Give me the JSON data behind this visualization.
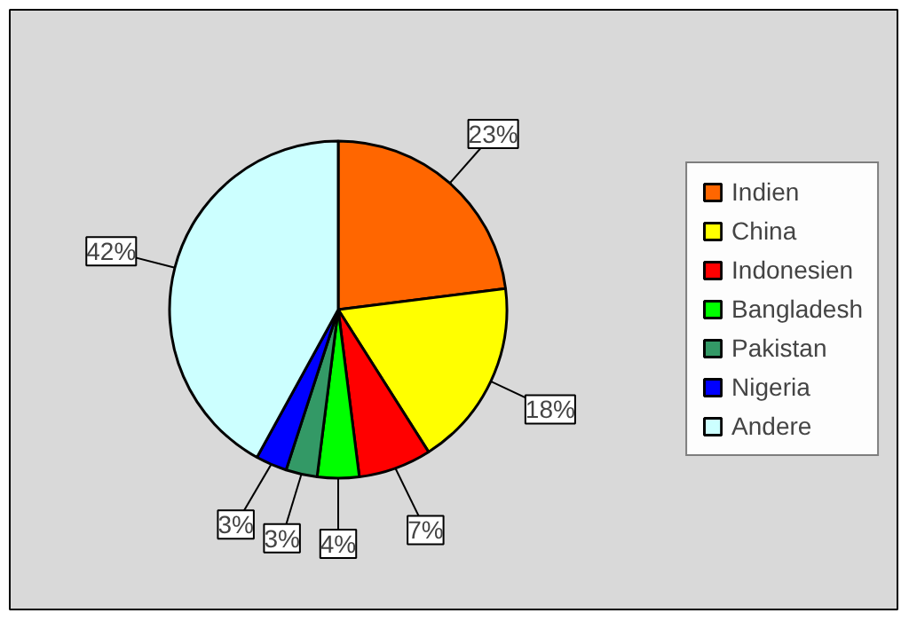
{
  "chart_data": {
    "type": "pie",
    "categories": [
      "Indien",
      "China",
      "Indonesien",
      "Bangladesh",
      "Pakistan",
      "Nigeria",
      "Andere"
    ],
    "values": [
      23,
      18,
      7,
      4,
      3,
      3,
      42
    ],
    "colors": [
      "#ff6600",
      "#ffff00",
      "#ff0000",
      "#00ff00",
      "#339966",
      "#0000ff",
      "#ccffff"
    ],
    "value_labels": [
      "23%",
      "18%",
      "7%",
      "4%",
      "3%",
      "3%",
      "42%"
    ],
    "legend": "right"
  }
}
